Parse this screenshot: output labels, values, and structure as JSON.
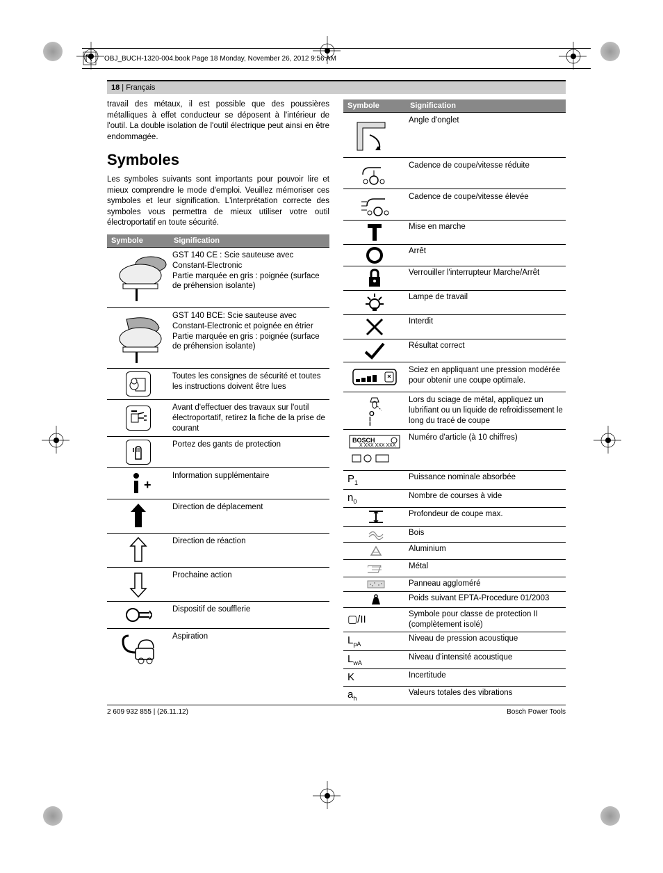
{
  "obj_line": "OBJ_BUCH-1320-004.book  Page 18  Monday, November 26, 2012  9:56 AM",
  "header": {
    "page": "18",
    "lang": "Français"
  },
  "intro": "travail des métaux, il est possible que des poussières métalliques à effet conducteur se déposent à l'intérieur de l'outil. La double isolation de l'outil électrique peut ainsi en être endommagée.",
  "h_symboles": "Symboles",
  "sym_intro": "Les symboles suivants sont importants pour pouvoir lire et mieux comprendre le mode d'emploi. Veuillez mémoriser ces symboles et leur signification. L'interprétation correcte des symboles vous permettra de mieux utiliser votre outil électroportatif en toute sécurité.",
  "th1": "Symbole",
  "th2": "Signification",
  "left": [
    {
      "k": "jigsaw1",
      "t": "GST 140 CE : Scie sauteuse avec Constant-Electronic<br>Partie marquée en gris : poignée (surface de préhension isolante)"
    },
    {
      "k": "jigsaw2",
      "t": "GST 140 BCE: Scie sauteuse avec Constant-Electronic et poignée en étrier<br>Partie marquée en gris : poignée (surface de préhension isolante)"
    },
    {
      "k": "read",
      "t": "Toutes les consignes de sécurité et toutes les instructions doivent être lues"
    },
    {
      "k": "unplug",
      "t": "Avant d'effectuer des travaux sur l'outil électroportatif, retirez la fiche de la prise de courant"
    },
    {
      "k": "gloves",
      "t": "Portez des gants de protection"
    },
    {
      "k": "info",
      "t": "Information supplémentaire"
    },
    {
      "k": "move",
      "t": "Direction de déplacement"
    },
    {
      "k": "react",
      "t": "Direction de réaction"
    },
    {
      "k": "next",
      "t": "Prochaine action"
    },
    {
      "k": "blower",
      "t": "Dispositif de soufflerie"
    },
    {
      "k": "vacuum",
      "t": "Aspiration"
    }
  ],
  "right": [
    {
      "k": "angle",
      "t": "Angle d'onglet"
    },
    {
      "k": "slow",
      "t": "Cadence de coupe/vitesse réduite"
    },
    {
      "k": "fast",
      "t": "Cadence de coupe/vitesse élevée"
    },
    {
      "k": "on",
      "t": "Mise en marche"
    },
    {
      "k": "off",
      "t": "Arrêt"
    },
    {
      "k": "lock",
      "t": "Verrouiller l'interrupteur Marche/Arrêt"
    },
    {
      "k": "lamp",
      "t": "Lampe de travail"
    },
    {
      "k": "no",
      "t": "Interdit"
    },
    {
      "k": "yes",
      "t": "Résultat correct"
    },
    {
      "k": "pressure",
      "t": "Sciez en appliquant une pression modérée pour obtenir une coupe optimale."
    },
    {
      "k": "oil",
      "t": "Lors du sciage de métal, appliquez un lubrifiant ou un liquide de refroidissement le long du tracé de coupe"
    },
    {
      "k": "artno",
      "t": "Numéro d'article (à 10 chiffres)"
    },
    {
      "k": "p1",
      "s": "P",
      "sub": "1",
      "t": "Puissance nominale absorbée"
    },
    {
      "k": "n0",
      "s": "n",
      "sub": "0",
      "t": "Nombre de courses à vide"
    },
    {
      "k": "depth",
      "t": "Profondeur de coupe max."
    },
    {
      "k": "wood",
      "t": "Bois"
    },
    {
      "k": "alu",
      "t": "Aluminium"
    },
    {
      "k": "metal",
      "t": "Métal"
    },
    {
      "k": "board",
      "t": "Panneau aggloméré"
    },
    {
      "k": "weight",
      "t": "Poids suivant EPTA-Procedure 01/2003"
    },
    {
      "k": "class",
      "s": "▢/II",
      "t": "Symbole pour classe de protection II (complètement isolé)"
    },
    {
      "k": "lpa",
      "s": "L",
      "sub": "pA",
      "t": "Niveau de pression acoustique"
    },
    {
      "k": "lwa",
      "s": "L",
      "sub": "wA",
      "t": "Niveau d'intensité acoustique"
    },
    {
      "k": "K",
      "s": "K",
      "t": "Incertitude"
    },
    {
      "k": "ah",
      "s": "a",
      "sub": "h",
      "t": "Valeurs totales des vibrations"
    }
  ],
  "footer_left": "2 609 932 855 | (26.11.12)",
  "footer_right": "Bosch Power Tools"
}
